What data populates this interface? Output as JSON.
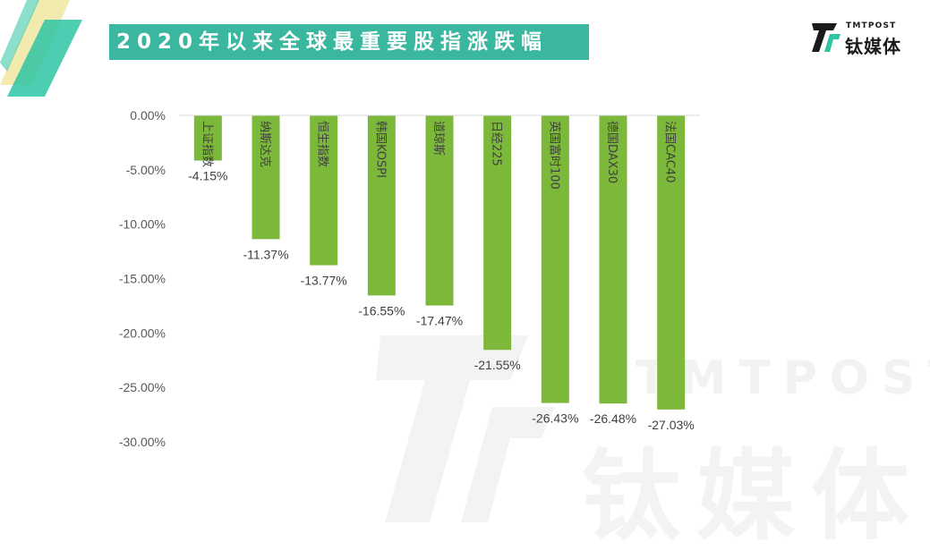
{
  "header": {
    "title": "2020年以来全球最重要股指涨跌幅"
  },
  "logo": {
    "en": "TMTPOST",
    "cn": "钛媒体"
  },
  "watermark": {
    "en": "TMTPOST",
    "cn": "钛媒体"
  },
  "colors": {
    "accent": "#3bb7a0",
    "bar": "#7cb83a",
    "corner_green": "#2ec4a4",
    "corner_yellow": "#f3eab0"
  },
  "chart_data": {
    "type": "bar",
    "categories": [
      "上证指数",
      "纳斯达克",
      "恒生指数",
      "韩国KOSPI",
      "道琼斯",
      "日经225",
      "英国富时100",
      "德国DAX30",
      "法国CAC40"
    ],
    "values": [
      -4.15,
      -11.37,
      -13.77,
      -16.55,
      -17.47,
      -21.55,
      -26.43,
      -26.48,
      -27.03
    ],
    "data_labels": [
      "-4.15%",
      "-11.37%",
      "-13.77%",
      "-16.55%",
      "-17.47%",
      "-21.55%",
      "-26.43%",
      "-26.48%",
      "-27.03%"
    ],
    "yticks": [
      0,
      -5,
      -10,
      -15,
      -20,
      -25,
      -30
    ],
    "ytick_labels": [
      "0.00%",
      "-5.00%",
      "-10.00%",
      "-15.00%",
      "-20.00%",
      "-25.00%",
      "-30.00%"
    ],
    "ylim": [
      -30,
      0
    ],
    "title": "",
    "xlabel": "",
    "ylabel": "",
    "grid": false,
    "legend": "none"
  }
}
